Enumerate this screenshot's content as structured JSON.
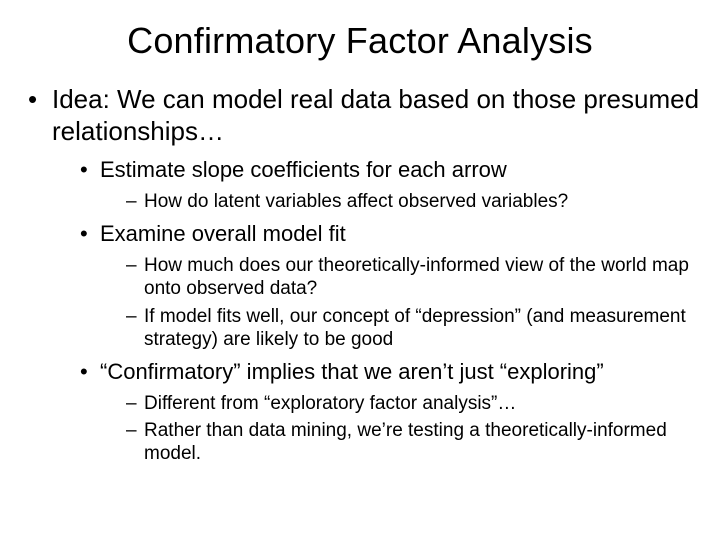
{
  "title": "Confirmatory Factor Analysis",
  "idea": "Idea:  We can model real data based on those presumed relationships…",
  "b1": "Estimate slope coefficients for each arrow",
  "b1s1": "How do latent variables affect observed variables?",
  "b2": "Examine overall model fit",
  "b2s1": "How much does our theoretically-informed view of the world map onto observed data?",
  "b2s2": "If model fits well, our concept of “depression” (and measurement strategy) are likely to be good",
  "b3": "“Confirmatory” implies that we aren’t just “exploring”",
  "b3s1": "Different from “exploratory factor analysis”…",
  "b3s2": "Rather than data mining, we’re testing a theoretically-informed model.",
  "style": {
    "background_color": "#ffffff",
    "text_color": "#000000",
    "font_family": "Arial",
    "title_fontsize": 36,
    "lvl1_fontsize": 26,
    "lvl2_fontsize": 22,
    "lvl3_fontsize": 19,
    "lvl1_marker": "•",
    "lvl2_marker": "•",
    "lvl3_marker": "–"
  }
}
